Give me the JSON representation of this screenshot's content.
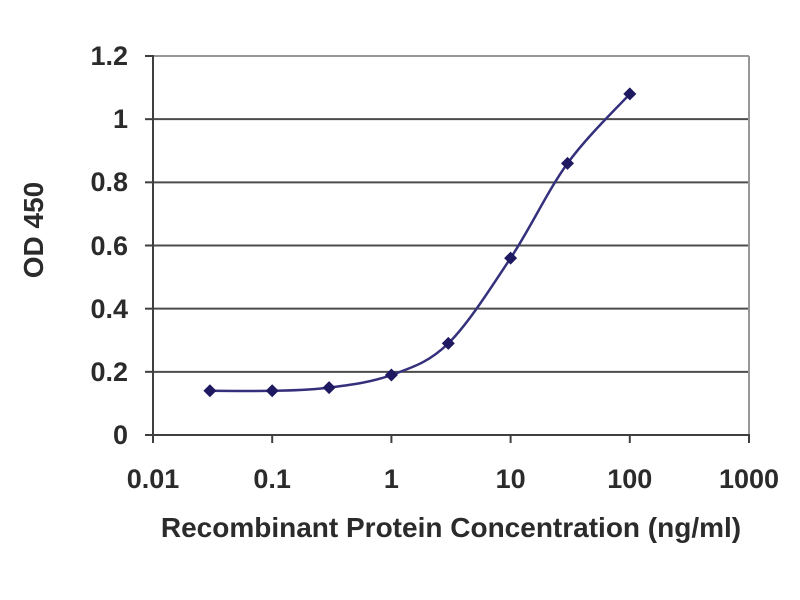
{
  "figure": {
    "background_color": "#ffffff",
    "kind": "ELISA standard curve plot"
  },
  "chart_data": {
    "type": "line",
    "title": "",
    "xlabel": "Recombinant Protein Concentration (ng/ml)",
    "ylabel": "OD 450",
    "xscale": "log",
    "yscale": "linear",
    "xlim": [
      0.01,
      1000
    ],
    "ylim": [
      0,
      1.2
    ],
    "x_ticks": [
      0.01,
      0.1,
      1,
      10,
      100,
      1000
    ],
    "x_tick_labels": [
      "0.01",
      "0.1",
      "1",
      "10",
      "100",
      "1000"
    ],
    "y_ticks": [
      0,
      0.2,
      0.4,
      0.6,
      0.8,
      1,
      1.2
    ],
    "y_tick_labels": [
      "0",
      "0.2",
      "0.4",
      "0.6",
      "0.8",
      "1",
      "1.2"
    ],
    "grid": "horizontal-only",
    "legend": "none",
    "series": [
      {
        "name": "OD 450 vs concentration",
        "x": [
          0.03,
          0.1,
          0.3,
          1,
          3,
          10,
          30,
          100
        ],
        "y": [
          0.14,
          0.14,
          0.15,
          0.19,
          0.29,
          0.56,
          0.86,
          1.08
        ],
        "marker": "diamond",
        "line_style": "smooth"
      }
    ],
    "colors": {
      "series_line": "#35307c",
      "series_marker": "#1e1960",
      "gridline": "#4c4c4c",
      "axis_line": "#3f3f3f",
      "frame_top_right": "#979797",
      "text": "#2b2b2b",
      "plot_background": "#ffffff"
    }
  }
}
